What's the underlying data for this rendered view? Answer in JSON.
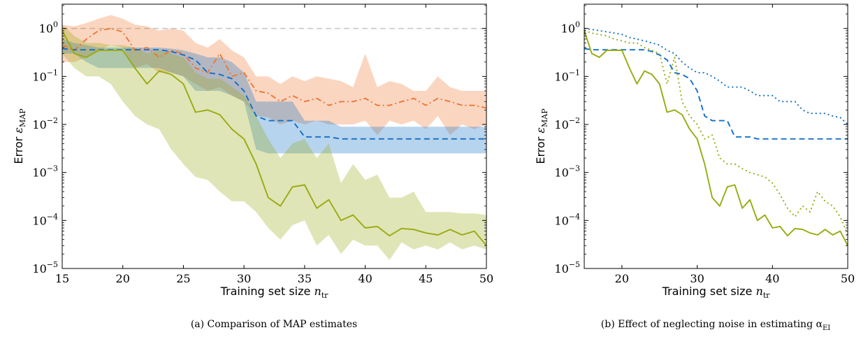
{
  "chart_data": [
    {
      "type": "line",
      "caption": "(a) Comparison of MAP estimates",
      "xlabel_text": "Training set size ",
      "xlabel_sym": "n",
      "xlabel_sub": "tr",
      "ylabel_text": "Error ",
      "ylabel_sym": "ε",
      "ylabel_sub": "MAP",
      "y_scale": "log",
      "xlim": [
        15,
        50
      ],
      "ylim": [
        1e-05,
        3.2
      ],
      "x_ticks": [
        15,
        20,
        25,
        30,
        35,
        40,
        45,
        50
      ],
      "y_ticks": [
        {
          "value": 1,
          "base": "10",
          "exp": "0"
        },
        {
          "value": 0.1,
          "base": "10",
          "exp": "−1"
        },
        {
          "value": 0.01,
          "base": "10",
          "exp": "−2"
        },
        {
          "value": 0.001,
          "base": "10",
          "exp": "−3"
        },
        {
          "value": 0.0001,
          "base": "10",
          "exp": "−4"
        },
        {
          "value": 1e-05,
          "base": "10",
          "exp": "−5"
        }
      ],
      "reference_line": {
        "y": 1,
        "color": "#c8c8c8",
        "style": "dashed"
      },
      "series": [
        {
          "color": "#ee7733",
          "style": "dashdot",
          "x": [
            15,
            16,
            17,
            18,
            19,
            20,
            21,
            22,
            23,
            24,
            25,
            26,
            27,
            28,
            29,
            30,
            31,
            32,
            33,
            34,
            35,
            36,
            37,
            38,
            39,
            40,
            41,
            42,
            43,
            44,
            45,
            46,
            47,
            48,
            49,
            50
          ],
          "y": [
            0.45,
            0.35,
            0.6,
            0.9,
            1.0,
            0.85,
            0.35,
            0.4,
            0.25,
            0.35,
            0.3,
            0.15,
            0.12,
            0.3,
            0.1,
            0.12,
            0.05,
            0.045,
            0.03,
            0.04,
            0.03,
            0.035,
            0.025,
            0.03,
            0.03,
            0.035,
            0.025,
            0.025,
            0.03,
            0.035,
            0.025,
            0.035,
            0.03,
            0.025,
            0.025,
            0.022
          ],
          "band_low": [
            0.2,
            0.2,
            0.25,
            0.35,
            0.45,
            0.4,
            0.15,
            0.18,
            0.12,
            0.12,
            0.1,
            0.07,
            0.05,
            0.06,
            0.04,
            0.03,
            0.015,
            0.014,
            0.01,
            0.012,
            0.01,
            0.012,
            0.01,
            0.01,
            0.01,
            0.012,
            0.006,
            0.012,
            0.01,
            0.012,
            0.008,
            0.015,
            0.006,
            0.01,
            0.008,
            0.01
          ],
          "band_high": [
            1.2,
            1.1,
            1.3,
            1.6,
            1.9,
            1.6,
            1.2,
            1.1,
            0.9,
            1.0,
            0.9,
            0.5,
            0.4,
            0.6,
            0.35,
            0.25,
            0.1,
            0.1,
            0.07,
            0.1,
            0.08,
            0.1,
            0.09,
            0.08,
            0.06,
            0.3,
            0.06,
            0.08,
            0.07,
            0.05,
            0.05,
            0.1,
            0.06,
            0.05,
            0.05,
            0.05
          ]
        },
        {
          "color": "#0f6fc6",
          "style": "dashed",
          "x": [
            15,
            16,
            17,
            18,
            19,
            20,
            21,
            22,
            23,
            24,
            25,
            26,
            27,
            28,
            29,
            30,
            31,
            32,
            33,
            34,
            35,
            36,
            37,
            38,
            39,
            40,
            41,
            42,
            43,
            44,
            45,
            46,
            47,
            48,
            49,
            50
          ],
          "y": [
            0.38,
            0.36,
            0.36,
            0.36,
            0.36,
            0.36,
            0.36,
            0.36,
            0.36,
            0.33,
            0.28,
            0.22,
            0.12,
            0.11,
            0.09,
            0.05,
            0.015,
            0.012,
            0.012,
            0.012,
            0.0055,
            0.0055,
            0.0055,
            0.005,
            0.005,
            0.005,
            0.005,
            0.005,
            0.005,
            0.005,
            0.005,
            0.005,
            0.005,
            0.005,
            0.005,
            0.005
          ],
          "band_low": [
            0.3,
            0.3,
            0.2,
            0.15,
            0.15,
            0.15,
            0.15,
            0.15,
            0.15,
            0.12,
            0.1,
            0.05,
            0.05,
            0.05,
            0.04,
            0.03,
            0.003,
            0.0025,
            0.0025,
            0.0025,
            0.0025,
            0.0025,
            0.0025,
            0.0025,
            0.0025,
            0.0025,
            0.0025,
            0.0025,
            0.0025,
            0.0025,
            0.0025,
            0.0025,
            0.0025,
            0.0025,
            0.0025,
            0.0025
          ],
          "band_high": [
            0.6,
            0.5,
            0.45,
            0.4,
            0.4,
            0.4,
            0.4,
            0.4,
            0.4,
            0.38,
            0.35,
            0.3,
            0.25,
            0.25,
            0.2,
            0.12,
            0.03,
            0.03,
            0.03,
            0.03,
            0.012,
            0.012,
            0.012,
            0.009,
            0.009,
            0.009,
            0.009,
            0.009,
            0.009,
            0.009,
            0.009,
            0.009,
            0.009,
            0.009,
            0.009,
            0.009
          ]
        },
        {
          "color": "#99aa11",
          "style": "solid",
          "x": [
            15,
            16,
            17,
            18,
            19,
            20,
            21,
            22,
            23,
            24,
            25,
            26,
            27,
            28,
            29,
            30,
            31,
            32,
            33,
            34,
            35,
            36,
            37,
            38,
            39,
            40,
            41,
            42,
            43,
            44,
            45,
            46,
            47,
            48,
            49,
            50
          ],
          "y": [
            0.9,
            0.3,
            0.25,
            0.35,
            0.35,
            0.35,
            0.15,
            0.07,
            0.13,
            0.11,
            0.07,
            0.018,
            0.02,
            0.016,
            0.008,
            0.005,
            0.0015,
            0.0003,
            0.0002,
            0.0005,
            0.00055,
            0.00018,
            0.00027,
            0.0001,
            0.00013,
            7e-05,
            7.5e-05,
            4.8e-05,
            6.8e-05,
            6.5e-05,
            5.5e-05,
            5e-05,
            6.5e-05,
            5e-05,
            6e-05,
            3e-05
          ],
          "band_low": [
            0.3,
            0.15,
            0.1,
            0.1,
            0.07,
            0.03,
            0.015,
            0.01,
            0.008,
            0.003,
            0.0015,
            0.0008,
            0.0007,
            0.0004,
            0.00025,
            0.00025,
            0.00015,
            7e-05,
            4e-05,
            8e-05,
            0.0001,
            3e-05,
            5e-05,
            2e-05,
            4e-05,
            3e-05,
            3e-05,
            1.5e-05,
            3.5e-05,
            2.5e-05,
            3e-05,
            2.5e-05,
            3.5e-05,
            2.5e-05,
            3e-05,
            2.5e-05
          ],
          "band_high": [
            1.2,
            0.7,
            0.5,
            0.5,
            0.45,
            0.45,
            0.4,
            0.3,
            0.35,
            0.3,
            0.25,
            0.12,
            0.09,
            0.09,
            0.06,
            0.04,
            0.015,
            0.005,
            0.002,
            0.004,
            0.005,
            0.002,
            0.004,
            0.0006,
            0.0015,
            0.0007,
            0.0009,
            0.0003,
            0.0003,
            0.0004,
            0.00015,
            0.00015,
            0.00015,
            0.00014,
            0.00014,
            0.00013
          ]
        }
      ]
    },
    {
      "type": "line",
      "caption": "(b) Effect of neglecting noise in estimating α",
      "caption_sub": "EI",
      "xlabel_text": "Training set size ",
      "xlabel_sym": "n",
      "xlabel_sub": "tr",
      "ylabel_text": "Error ",
      "ylabel_sym": "ε",
      "ylabel_sub": "MAP",
      "y_scale": "log",
      "xlim": [
        15,
        50
      ],
      "ylim": [
        1e-05,
        3.2
      ],
      "x_ticks": [
        20,
        30,
        40,
        50
      ],
      "y_ticks": [
        {
          "value": 1,
          "base": "10",
          "exp": "0"
        },
        {
          "value": 0.1,
          "base": "10",
          "exp": "−1"
        },
        {
          "value": 0.01,
          "base": "10",
          "exp": "−2"
        },
        {
          "value": 0.001,
          "base": "10",
          "exp": "−3"
        },
        {
          "value": 0.0001,
          "base": "10",
          "exp": "−4"
        },
        {
          "value": 1e-05,
          "base": "10",
          "exp": "−5"
        }
      ],
      "series": [
        {
          "color": "#0f6fc6",
          "style": "dotted",
          "x": [
            15,
            16,
            17,
            18,
            19,
            20,
            21,
            22,
            23,
            24,
            25,
            26,
            27,
            28,
            29,
            30,
            31,
            32,
            33,
            34,
            35,
            36,
            37,
            38,
            39,
            40,
            41,
            42,
            43,
            44,
            45,
            46,
            47,
            48,
            49,
            50
          ],
          "y": [
            1.0,
            0.95,
            0.9,
            0.85,
            0.8,
            0.75,
            0.65,
            0.6,
            0.55,
            0.5,
            0.45,
            0.35,
            0.3,
            0.2,
            0.15,
            0.12,
            0.12,
            0.1,
            0.08,
            0.06,
            0.06,
            0.06,
            0.05,
            0.04,
            0.04,
            0.04,
            0.03,
            0.03,
            0.03,
            0.02,
            0.017,
            0.017,
            0.017,
            0.015,
            0.014,
            0.01
          ],
          "band_low": null,
          "band_high": null
        },
        {
          "color": "#0f6fc6",
          "style": "dashed",
          "x": [
            15,
            16,
            17,
            18,
            19,
            20,
            21,
            22,
            23,
            24,
            25,
            26,
            27,
            28,
            29,
            30,
            31,
            32,
            33,
            34,
            35,
            36,
            37,
            38,
            39,
            40,
            41,
            42,
            43,
            44,
            45,
            46,
            47,
            48,
            49,
            50
          ],
          "y": [
            0.38,
            0.36,
            0.36,
            0.36,
            0.36,
            0.36,
            0.36,
            0.36,
            0.36,
            0.33,
            0.28,
            0.22,
            0.12,
            0.11,
            0.09,
            0.05,
            0.015,
            0.012,
            0.012,
            0.012,
            0.0055,
            0.0055,
            0.0055,
            0.005,
            0.005,
            0.005,
            0.005,
            0.005,
            0.005,
            0.005,
            0.005,
            0.005,
            0.005,
            0.005,
            0.005,
            0.005
          ],
          "band_low": null,
          "band_high": null
        },
        {
          "color": "#99aa11",
          "style": "dotted",
          "x": [
            15,
            16,
            17,
            18,
            19,
            20,
            21,
            22,
            23,
            24,
            25,
            26,
            27,
            28,
            29,
            30,
            31,
            32,
            33,
            34,
            35,
            36,
            37,
            38,
            39,
            40,
            41,
            42,
            43,
            44,
            45,
            46,
            47,
            48,
            49,
            50
          ],
          "y": [
            0.9,
            0.8,
            0.75,
            0.7,
            0.6,
            0.55,
            0.5,
            0.5,
            0.4,
            0.35,
            0.3,
            0.07,
            0.25,
            0.03,
            0.015,
            0.01,
            0.005,
            0.006,
            0.002,
            0.0015,
            0.0015,
            0.0012,
            0.001,
            0.0009,
            0.0008,
            0.0006,
            0.00035,
            0.00018,
            0.00012,
            0.0002,
            0.00015,
            0.0004,
            0.00025,
            0.0002,
            0.00012,
            5e-05
          ],
          "band_low": null,
          "band_high": null
        },
        {
          "color": "#99aa11",
          "style": "solid",
          "x": [
            15,
            16,
            17,
            18,
            19,
            20,
            21,
            22,
            23,
            24,
            25,
            26,
            27,
            28,
            29,
            30,
            31,
            32,
            33,
            34,
            35,
            36,
            37,
            38,
            39,
            40,
            41,
            42,
            43,
            44,
            45,
            46,
            47,
            48,
            49,
            50
          ],
          "y": [
            0.9,
            0.3,
            0.25,
            0.35,
            0.35,
            0.35,
            0.15,
            0.07,
            0.13,
            0.11,
            0.07,
            0.018,
            0.02,
            0.016,
            0.008,
            0.005,
            0.0015,
            0.0003,
            0.0002,
            0.0005,
            0.00055,
            0.00018,
            0.00027,
            0.0001,
            0.00013,
            7e-05,
            7.5e-05,
            4.8e-05,
            6.8e-05,
            6.5e-05,
            5.5e-05,
            5e-05,
            6.5e-05,
            5e-05,
            6e-05,
            3e-05
          ],
          "band_low": null,
          "band_high": null
        }
      ]
    }
  ]
}
